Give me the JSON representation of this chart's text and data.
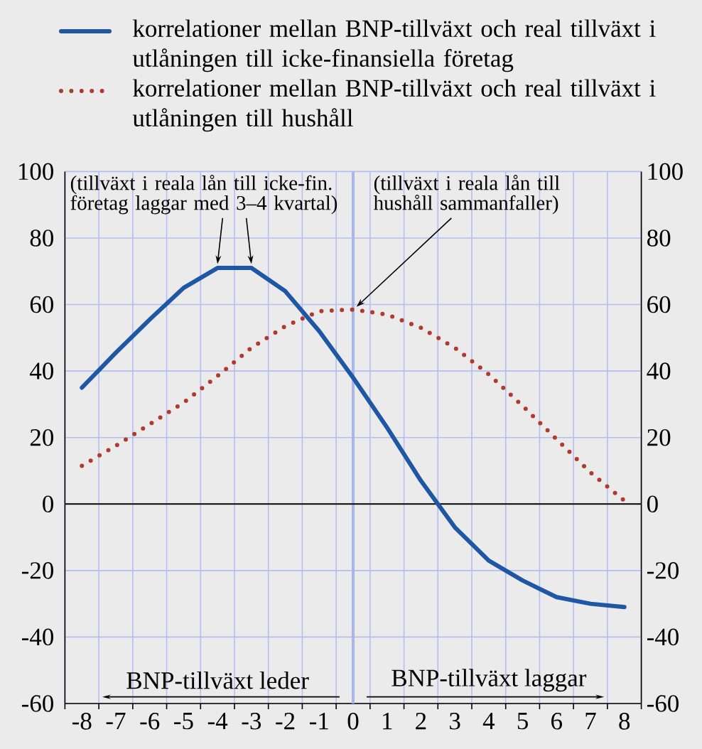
{
  "chart_data": {
    "type": "line",
    "x": [
      -8,
      -7,
      -6,
      -5,
      -4,
      -3,
      -2,
      -1,
      0,
      1,
      2,
      3,
      4,
      5,
      6,
      7,
      8
    ],
    "series": [
      {
        "name": "korrelationer mellan BNP-tillväxt och real tillväxt i utlåningen till icke-finansiella företag",
        "color": "#1f57a5",
        "line_style": "solid",
        "values": [
          35,
          45.5,
          55.5,
          65,
          71,
          71,
          64,
          52,
          38,
          23,
          7,
          -7,
          -17,
          -23,
          -28,
          -30,
          -31
        ]
      },
      {
        "name": "korrelationer mellan BNP-tillväxt och real tillväxt i utlåningen till hushåll",
        "color": "#b03a2e",
        "line_style": "dotted",
        "values": [
          11.5,
          17.5,
          24,
          30.5,
          38.5,
          47,
          53.5,
          58,
          58.5,
          57,
          53,
          47,
          39,
          29.5,
          19.5,
          9.5,
          1
        ]
      }
    ],
    "xlim": [
      -8.5,
      8.5
    ],
    "xticks": [
      {
        "value": -8.5,
        "label": null
      },
      {
        "value": -7.5,
        "label": null
      },
      {
        "value": -6.5,
        "label": null
      },
      {
        "value": -5.5,
        "label": null
      },
      {
        "value": -4.5,
        "label": null
      },
      {
        "value": -3.5,
        "label": null
      },
      {
        "value": -2.5,
        "label": null
      },
      {
        "value": -1.5,
        "label": null
      },
      {
        "value": -0.5,
        "label": null
      },
      {
        "value": 0.5,
        "label": null
      },
      {
        "value": 1.5,
        "label": null
      },
      {
        "value": 2.5,
        "label": null
      },
      {
        "value": 3.5,
        "label": null
      },
      {
        "value": 4.5,
        "label": null
      },
      {
        "value": 5.5,
        "label": null
      },
      {
        "value": 6.5,
        "label": null
      },
      {
        "value": 7.5,
        "label": null
      },
      {
        "value": 8.5,
        "label": null
      },
      -8,
      -7,
      -6,
      -5,
      -4,
      -3,
      -2,
      -1,
      0,
      1,
      2,
      3,
      4,
      5,
      6,
      7,
      8
    ],
    "ylim": [
      -60,
      100
    ],
    "yticks": [
      -60,
      -40,
      -20,
      0,
      20,
      40,
      60,
      80,
      100
    ],
    "y2lim": [
      -60,
      100
    ],
    "y2ticks": [
      -60,
      -40,
      -20,
      0,
      20,
      40,
      60,
      80,
      100
    ],
    "grid": true,
    "legend": "top",
    "marker": "none",
    "ref_lines": [
      {
        "axis": "x",
        "value": 0,
        "color": "#a9b6ec"
      },
      {
        "axis": "y",
        "value": 0,
        "color": "#000000"
      }
    ],
    "annotations": [
      {
        "text": "(tillväxt i reala lån till icke-fin. företag laggar med 3–4 kvartal)",
        "x": -4,
        "y": 71
      },
      {
        "text": "(tillväxt i reala lån till hushåll sammanfaller)",
        "x": 0,
        "y": 58.5
      },
      "BNP-tillväxt leder",
      "BNP-tillväxt laggar"
    ]
  }
}
